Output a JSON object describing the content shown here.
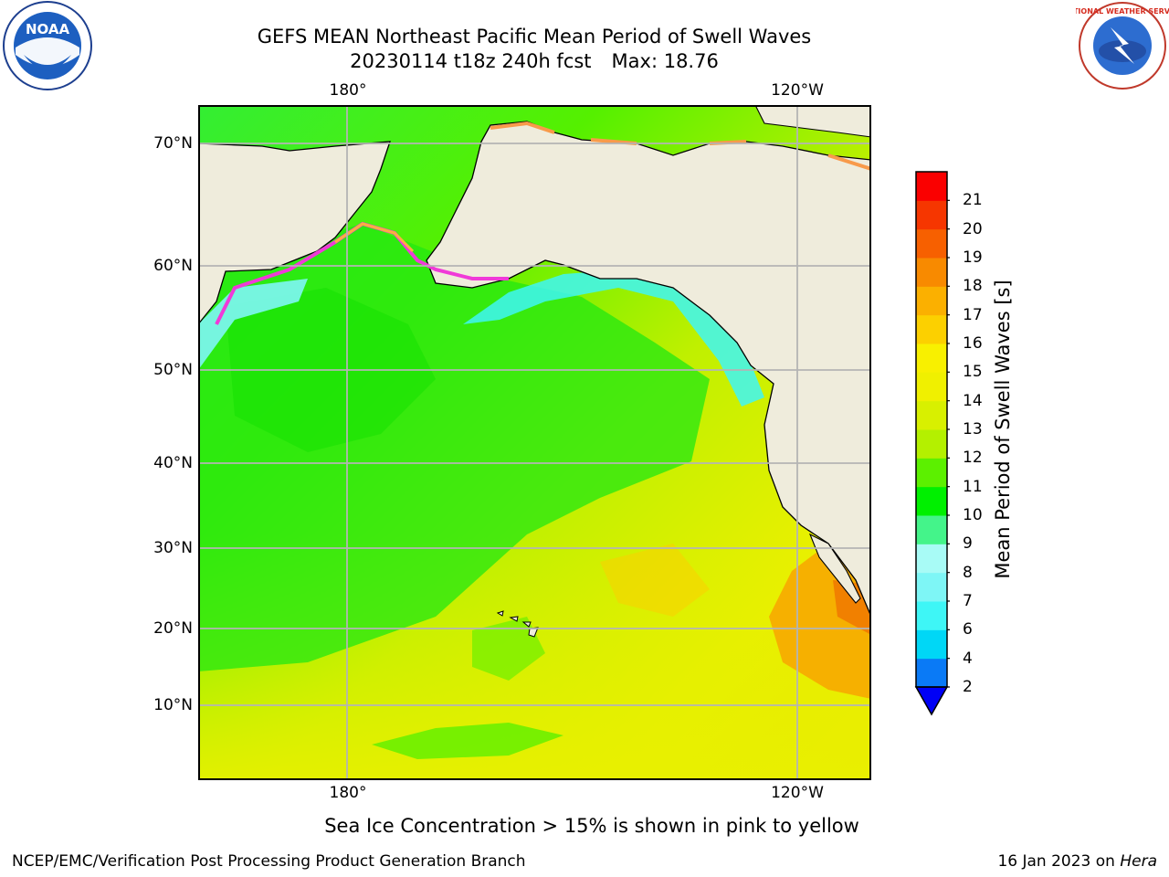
{
  "title": {
    "line1": "GEFS MEAN Northeast Pacific Mean Period of Swell Waves",
    "line2": "20230114 t18z 240h fcst",
    "max": "Max: 18.76"
  },
  "map": {
    "lon_labels_top": [
      "180°",
      "120°W"
    ],
    "lon_labels_bottom": [
      "180°",
      "120°W"
    ],
    "lat_labels": [
      "70°N",
      "60°N",
      "50°N",
      "40°N",
      "30°N",
      "20°N",
      "10°N"
    ],
    "land_color": "#efecdc",
    "grid_color": "#b4b4b4"
  },
  "colorbar": {
    "title": "Mean Period of Swell Waves [s]",
    "tick_labels": [
      "2",
      "4",
      "6",
      "7",
      "8",
      "9",
      "10",
      "11",
      "12",
      "13",
      "14",
      "15",
      "16",
      "17",
      "18",
      "19",
      "20",
      "21"
    ],
    "colors": [
      "#0a7af6",
      "#00d7f6",
      "#3ef6f6",
      "#7ef6f6",
      "#a8fbf6",
      "#44f48a",
      "#00f000",
      "#5cf000",
      "#b4f000",
      "#d8f000",
      "#f0f000",
      "#f8f000",
      "#fcd000",
      "#fbb000",
      "#f88a00",
      "#f76000",
      "#f63600",
      "#fa0000"
    ],
    "extend_color": "#0000f6"
  },
  "caption": "Sea Ice Concentration > 15% is shown in pink to yellow",
  "footer": {
    "left": "NCEP/EMC/Verification Post Processing Product Generation Branch",
    "right_prefix": "16 Jan 2023 on ",
    "right_machine": "Hera"
  },
  "logos": {
    "noaa_text": "NOAA",
    "nws_text": "NATIONAL WEATHER SERVICE"
  }
}
